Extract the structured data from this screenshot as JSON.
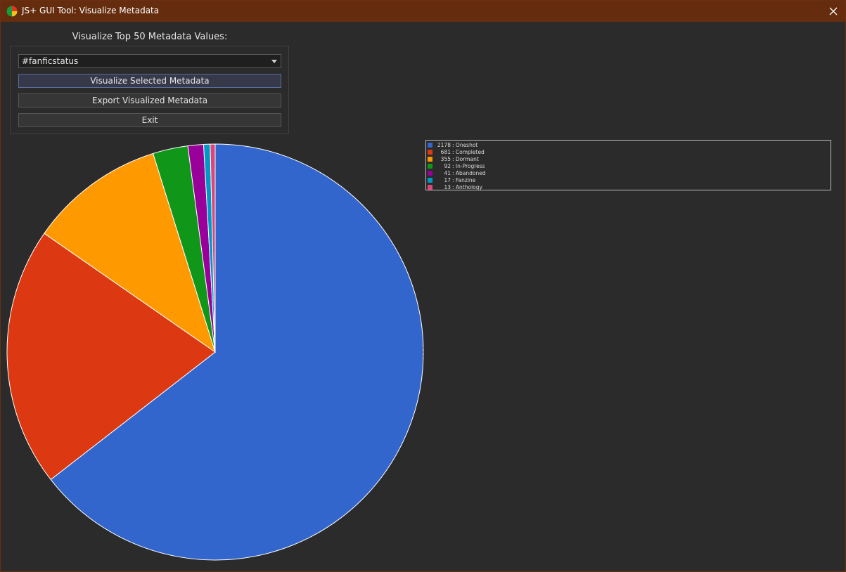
{
  "window": {
    "title": "JS+ GUI Tool: Visualize Metadata",
    "icons": {
      "app": "pie-chart-icon",
      "close": "close-icon"
    }
  },
  "panel": {
    "heading": "Visualize Top 50 Metadata Values:",
    "selected_metadata": "#fanficstatus",
    "visualize_label": "Visualize Selected Metadata",
    "export_label": "Export Visualized Metadata",
    "exit_label": "Exit"
  },
  "colors": {
    "titlebar": "#652d0e",
    "background": "#2b2b2b"
  },
  "chart_data": {
    "type": "pie",
    "title": "",
    "legend_position": "top-right",
    "slices": [
      {
        "label": "Oneshot",
        "value": 2178,
        "color": "#3366cc"
      },
      {
        "label": "Completed",
        "value": 681,
        "color": "#dc3912"
      },
      {
        "label": "Dormant",
        "value": 355,
        "color": "#ff9900"
      },
      {
        "label": "In-Progress",
        "value": 92,
        "color": "#109618"
      },
      {
        "label": "Abandoned",
        "value": 41,
        "color": "#990099"
      },
      {
        "label": "Fanzine",
        "value": 17,
        "color": "#0099c6"
      },
      {
        "label": "Anthology",
        "value": 13,
        "color": "#dd4477"
      }
    ]
  }
}
